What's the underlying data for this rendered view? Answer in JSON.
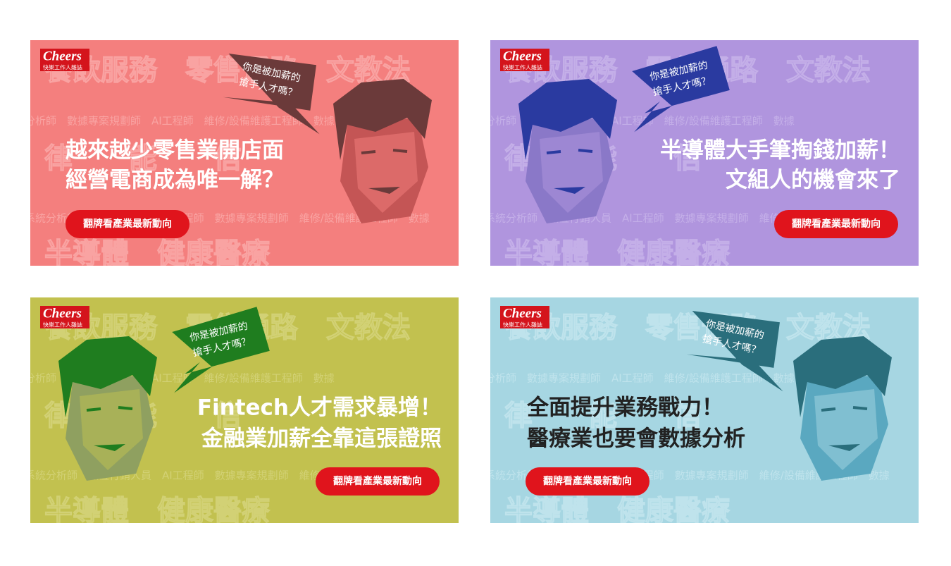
{
  "watermarks": [
    "餐飲服務　零售通路　文教法",
    "分析師　數據專案規劃師　AI工程師　維修/設備維護工程師　數據",
    "律　　能　　信",
    "系統分析師　數位行銷人員　AI工程師　數據專案規劃師　維修/設備維護工程師　數據",
    "半導體　健康醫療"
  ],
  "banners": [
    {
      "logo": "Cheers",
      "logo_sub": "快樂工作人雜誌",
      "bubble": [
        "你是被加薪的",
        "搶手人才嗎？"
      ],
      "headline": [
        "越來越少零售業開店面",
        "經營電商成為唯一解？"
      ],
      "button": "翻牌看產業最新動向"
    },
    {
      "logo": "Cheers",
      "logo_sub": "快樂工作人雜誌",
      "bubble": [
        "你是被加薪的",
        "搶手人才嗎？"
      ],
      "headline": [
        "半導體大手筆掏錢加薪！",
        "文組人的機會來了"
      ],
      "button": "翻牌看產業最新動向"
    },
    {
      "logo": "Cheers",
      "logo_sub": "快樂工作人雜誌",
      "bubble": [
        "你是被加薪的",
        "搶手人才嗎？"
      ],
      "headline": [
        "Fintech人才需求暴增！",
        "金融業加薪全靠這張證照"
      ],
      "button": "翻牌看產業最新動向"
    },
    {
      "logo": "Cheers",
      "logo_sub": "快樂工作人雜誌",
      "bubble": [
        "你是被加薪的",
        "搶手人才嗎？"
      ],
      "headline": [
        "全面提升業務戰力！",
        "醫療業也要會數據分析"
      ],
      "button": "翻牌看產業最新動向"
    }
  ]
}
